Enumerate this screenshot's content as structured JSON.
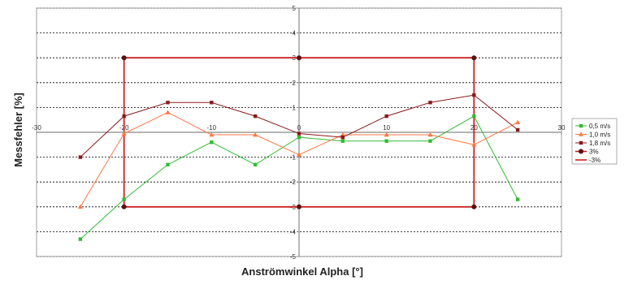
{
  "chart_data": {
    "type": "line",
    "title": "",
    "xlabel": "Anströmwinkel Alpha [°]",
    "ylabel": "Messfehler [%]",
    "xlim": [
      -30,
      30
    ],
    "ylim": [
      -5,
      5
    ],
    "x_ticks": [
      -30,
      -20,
      -10,
      0,
      10,
      20,
      30
    ],
    "y_ticks": [
      -5,
      -4,
      -3,
      -2,
      -1,
      1,
      2,
      3,
      4,
      5
    ],
    "x_tick_labels": [
      "-30",
      "-20",
      "-10",
      "0",
      "10",
      "20",
      "30"
    ],
    "y_tick_labels": [
      "-5",
      "-4",
      "-3",
      "-2",
      "-1",
      "1",
      "2",
      "3",
      "4",
      "5"
    ],
    "grid": "horizontal dashed",
    "legend_position": "right",
    "series": [
      {
        "name": "0,5 m/s",
        "color": "#33bb33",
        "marker": "square",
        "x": [
          -25,
          -20,
          -15,
          -10,
          -5,
          0,
          5,
          10,
          15,
          20,
          25
        ],
        "y": [
          -4.3,
          -2.7,
          -1.3,
          -0.4,
          -1.3,
          -0.2,
          -0.35,
          -0.35,
          -0.35,
          0.65,
          -2.7
        ]
      },
      {
        "name": "1,0 m/s",
        "color": "#ff7744",
        "marker": "triangle",
        "x": [
          -25,
          -20,
          -15,
          -10,
          -5,
          0,
          5,
          10,
          15,
          20,
          25
        ],
        "y": [
          -3.0,
          -0.05,
          0.8,
          -0.1,
          -0.1,
          -0.9,
          -0.1,
          -0.1,
          -0.1,
          -0.5,
          0.4
        ]
      },
      {
        "name": "1,8 m/s",
        "color": "#8b1a1a",
        "marker": "square",
        "x": [
          -25,
          -20,
          -15,
          -10,
          -5,
          0,
          5,
          10,
          15,
          20,
          25
        ],
        "y": [
          -1.0,
          0.65,
          1.2,
          1.2,
          0.65,
          -0.05,
          -0.2,
          0.65,
          1.2,
          1.5,
          0.1
        ]
      },
      {
        "name": "3%",
        "color": "#cc2222",
        "marker": "circle",
        "x": [
          -20,
          0,
          20
        ],
        "y": [
          3,
          3,
          3
        ]
      },
      {
        "name": "-3%",
        "color": "#cc2222",
        "marker": "circle",
        "x": [
          -20,
          0,
          20
        ],
        "y": [
          -3,
          -3,
          -3
        ]
      }
    ],
    "annotations": [
      {
        "type": "vline",
        "x": -20,
        "from": -3,
        "to": 3,
        "color": "#cc2222"
      },
      {
        "type": "vline",
        "x": 20,
        "from": -3,
        "to": 3,
        "color": "#cc2222"
      }
    ]
  }
}
